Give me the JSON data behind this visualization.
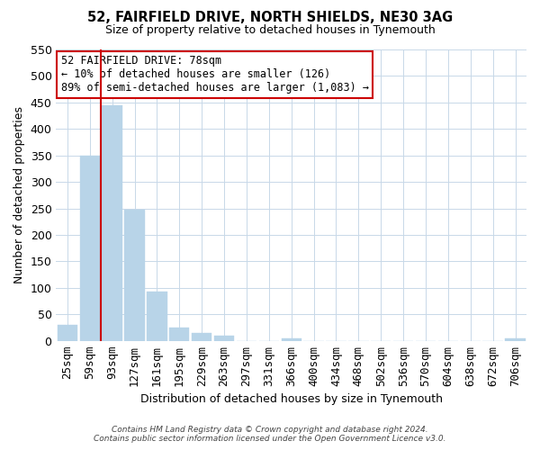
{
  "title": "52, FAIRFIELD DRIVE, NORTH SHIELDS, NE30 3AG",
  "subtitle": "Size of property relative to detached houses in Tynemouth",
  "xlabel": "Distribution of detached houses by size in Tynemouth",
  "ylabel": "Number of detached properties",
  "bar_labels": [
    "25sqm",
    "59sqm",
    "93sqm",
    "127sqm",
    "161sqm",
    "195sqm",
    "229sqm",
    "263sqm",
    "297sqm",
    "331sqm",
    "366sqm",
    "400sqm",
    "434sqm",
    "468sqm",
    "502sqm",
    "536sqm",
    "570sqm",
    "604sqm",
    "638sqm",
    "672sqm",
    "706sqm"
  ],
  "bar_values": [
    30,
    350,
    445,
    248,
    93,
    25,
    15,
    10,
    0,
    0,
    5,
    0,
    0,
    0,
    0,
    0,
    0,
    0,
    0,
    0,
    4
  ],
  "bar_color": "#b8d4e8",
  "vline_x": 1.5,
  "vline_color": "#cc0000",
  "ylim": [
    0,
    550
  ],
  "yticks": [
    0,
    50,
    100,
    150,
    200,
    250,
    300,
    350,
    400,
    450,
    500,
    550
  ],
  "annotation_line1": "52 FAIRFIELD DRIVE: 78sqm",
  "annotation_line2": "← 10% of detached houses are smaller (126)",
  "annotation_line3": "89% of semi-detached houses are larger (1,083) →",
  "annotation_box_color": "#ffffff",
  "annotation_box_edge": "#cc0000",
  "footer_line1": "Contains HM Land Registry data © Crown copyright and database right 2024.",
  "footer_line2": "Contains public sector information licensed under the Open Government Licence v3.0.",
  "bg_color": "#ffffff",
  "grid_color": "#c8d8e8"
}
